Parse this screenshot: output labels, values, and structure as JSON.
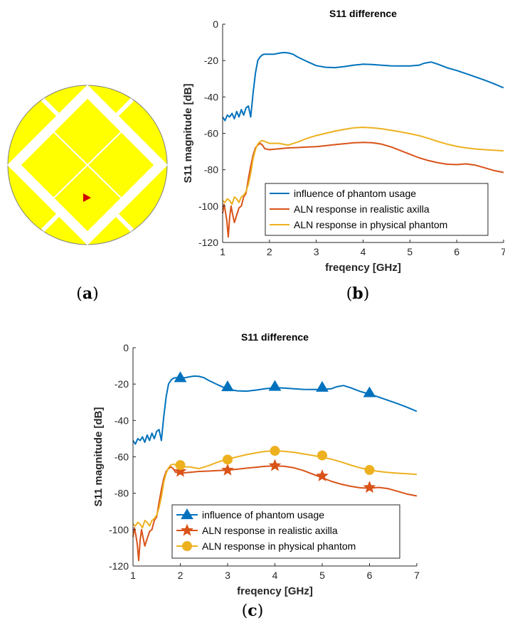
{
  "figure": {
    "panel_a_label": "a",
    "panel_b_label": "b",
    "panel_c_label": "c"
  },
  "colors": {
    "blue": "#0072BD",
    "orange": "#D95319",
    "yellow": "#EDB120",
    "antenna_fill": "#FFFF00",
    "feed": "#D00000"
  },
  "chart_data": [
    {
      "id": "b",
      "type": "line",
      "title": "S11 difference",
      "xlabel": "freqency [GHz]",
      "ylabel": "S11 magnitude [dB]",
      "xlim": [
        1,
        7
      ],
      "ylim": [
        -120,
        0
      ],
      "xticks": [
        "1",
        "2",
        "3",
        "4",
        "5",
        "6",
        "7"
      ],
      "yticks": [
        "0",
        "-20",
        "-40",
        "-60",
        "-80",
        "-100",
        "-120"
      ],
      "grid": false,
      "legend_position": "bottom-right",
      "markers": false,
      "series": [
        {
          "name": "influence of phantom usage",
          "color": "#0072BD",
          "x": [
            1.0,
            1.05,
            1.1,
            1.15,
            1.2,
            1.25,
            1.3,
            1.35,
            1.4,
            1.45,
            1.5,
            1.55,
            1.6,
            1.65,
            1.7,
            1.75,
            1.8,
            1.85,
            1.9,
            2.0,
            2.1,
            2.2,
            2.3,
            2.4,
            2.5,
            2.6,
            2.8,
            3.0,
            3.2,
            3.4,
            3.6,
            3.8,
            4.0,
            4.2,
            4.4,
            4.6,
            4.8,
            5.0,
            5.2,
            5.3,
            5.45,
            5.6,
            5.8,
            6.0,
            6.2,
            6.4,
            6.6,
            6.8,
            7.0
          ],
          "y": [
            -51,
            -53,
            -50,
            -51,
            -49,
            -52,
            -48,
            -51,
            -47,
            -50,
            -46,
            -45,
            -51,
            -38,
            -27,
            -20,
            -18,
            -16.8,
            -16.5,
            -16.5,
            -16.5,
            -16.0,
            -15.6,
            -15.8,
            -16.5,
            -18.0,
            -20.5,
            -22.8,
            -23.7,
            -23.9,
            -23.3,
            -22.5,
            -22.0,
            -22.2,
            -22.6,
            -22.9,
            -23.0,
            -23.0,
            -22.5,
            -21.5,
            -20.8,
            -22.0,
            -24.0,
            -25.5,
            -27.2,
            -29.0,
            -30.8,
            -32.8,
            -35.0
          ]
        },
        {
          "name": "ALN response in realistic axilla",
          "color": "#D95319",
          "x": [
            1.0,
            1.03,
            1.06,
            1.09,
            1.12,
            1.15,
            1.18,
            1.21,
            1.25,
            1.3,
            1.35,
            1.4,
            1.45,
            1.5,
            1.55,
            1.6,
            1.65,
            1.7,
            1.75,
            1.8,
            1.85,
            1.9,
            2.0,
            2.2,
            2.4,
            2.6,
            2.8,
            3.0,
            3.2,
            3.4,
            3.6,
            3.8,
            4.0,
            4.2,
            4.4,
            4.6,
            4.8,
            5.0,
            5.2,
            5.4,
            5.6,
            5.8,
            6.0,
            6.2,
            6.4,
            6.6,
            6.8,
            7.0
          ],
          "y": [
            -104,
            -99,
            -103,
            -108,
            -117,
            -106,
            -100,
            -104,
            -109,
            -105,
            -101,
            -100,
            -95,
            -93,
            -85,
            -78,
            -72,
            -68,
            -66.5,
            -65.5,
            -66.5,
            -68.5,
            -69.0,
            -68.5,
            -68.0,
            -67.8,
            -67.5,
            -67.3,
            -66.8,
            -66.2,
            -65.7,
            -65.2,
            -65.0,
            -65.2,
            -66.0,
            -67.5,
            -69.5,
            -71.5,
            -73.5,
            -75.0,
            -76.2,
            -77.0,
            -77.2,
            -76.8,
            -77.5,
            -79.0,
            -80.5,
            -81.5
          ]
        },
        {
          "name": "ALN response in physical phantom",
          "color": "#EDB120",
          "x": [
            1.0,
            1.05,
            1.1,
            1.15,
            1.2,
            1.25,
            1.3,
            1.35,
            1.4,
            1.45,
            1.5,
            1.55,
            1.6,
            1.65,
            1.7,
            1.75,
            1.8,
            1.85,
            1.9,
            2.0,
            2.2,
            2.4,
            2.6,
            2.8,
            3.0,
            3.2,
            3.4,
            3.6,
            3.8,
            4.0,
            4.2,
            4.4,
            4.6,
            4.8,
            5.0,
            5.2,
            5.4,
            5.6,
            5.8,
            6.0,
            6.2,
            6.4,
            6.6,
            6.8,
            7.0
          ],
          "y": [
            -97,
            -98,
            -96,
            -97,
            -99,
            -95,
            -96,
            -98,
            -95,
            -94,
            -92,
            -88,
            -82,
            -74,
            -69,
            -66,
            -64.5,
            -64,
            -64.5,
            -65.5,
            -65.5,
            -66.5,
            -64.8,
            -62.8,
            -61.2,
            -60.0,
            -58.8,
            -57.8,
            -57.0,
            -56.7,
            -57.0,
            -57.5,
            -58.3,
            -59.2,
            -60.2,
            -61.3,
            -62.8,
            -64.5,
            -66.0,
            -67.2,
            -68.0,
            -68.6,
            -69.0,
            -69.3,
            -69.6
          ]
        }
      ]
    },
    {
      "id": "c",
      "type": "line",
      "title": "S11 difference",
      "xlabel": "freqency [GHz]",
      "ylabel": "S11 magnitude [dB]",
      "xlim": [
        1,
        7
      ],
      "ylim": [
        -120,
        0
      ],
      "xticks": [
        "1",
        "2",
        "3",
        "4",
        "5",
        "6",
        "7"
      ],
      "yticks": [
        "0",
        "-20",
        "-40",
        "-60",
        "-80",
        "-100",
        "-120"
      ],
      "grid": false,
      "legend_position": "bottom-right",
      "markers": true,
      "series": [
        {
          "name": "influence of phantom usage",
          "color": "#0072BD",
          "marker": "triangle",
          "marker_x": [
            2,
            3,
            4,
            5,
            6
          ],
          "marker_y": [
            -16.5,
            -21.5,
            -21.3,
            -21.8,
            -24.8
          ],
          "x": [
            1.0,
            1.05,
            1.1,
            1.15,
            1.2,
            1.25,
            1.3,
            1.35,
            1.4,
            1.45,
            1.5,
            1.55,
            1.6,
            1.65,
            1.7,
            1.75,
            1.8,
            1.85,
            1.9,
            2.0,
            2.1,
            2.2,
            2.3,
            2.4,
            2.5,
            2.6,
            2.8,
            3.0,
            3.2,
            3.4,
            3.6,
            3.8,
            4.0,
            4.2,
            4.4,
            4.6,
            4.8,
            5.0,
            5.2,
            5.3,
            5.45,
            5.6,
            5.8,
            6.0,
            6.2,
            6.4,
            6.6,
            6.8,
            7.0
          ],
          "y": [
            -51,
            -53,
            -50,
            -51,
            -49,
            -52,
            -48,
            -51,
            -47,
            -50,
            -46,
            -45,
            -51,
            -38,
            -27,
            -20,
            -18,
            -16.8,
            -16.5,
            -16.5,
            -16.5,
            -16.0,
            -15.6,
            -15.8,
            -16.5,
            -18.0,
            -20.5,
            -22.8,
            -23.7,
            -23.9,
            -23.3,
            -22.5,
            -22.0,
            -22.2,
            -22.6,
            -22.9,
            -23.0,
            -23.0,
            -22.5,
            -21.5,
            -20.8,
            -22.0,
            -24.0,
            -25.5,
            -27.2,
            -29.0,
            -30.8,
            -32.8,
            -35.0
          ]
        },
        {
          "name": "ALN response in realistic axilla",
          "color": "#D95319",
          "marker": "star",
          "marker_x": [
            2,
            3,
            4,
            5,
            6
          ],
          "marker_y": [
            -68.0,
            -67.3,
            -64.8,
            -70.5,
            -76.8
          ],
          "x": [
            1.0,
            1.03,
            1.06,
            1.09,
            1.12,
            1.15,
            1.18,
            1.21,
            1.25,
            1.3,
            1.35,
            1.4,
            1.45,
            1.5,
            1.55,
            1.6,
            1.65,
            1.7,
            1.75,
            1.8,
            1.85,
            1.9,
            2.0,
            2.2,
            2.4,
            2.6,
            2.8,
            3.0,
            3.2,
            3.4,
            3.6,
            3.8,
            4.0,
            4.2,
            4.4,
            4.6,
            4.8,
            5.0,
            5.2,
            5.4,
            5.6,
            5.8,
            6.0,
            6.2,
            6.4,
            6.6,
            6.8,
            7.0
          ],
          "y": [
            -104,
            -99,
            -103,
            -108,
            -117,
            -106,
            -100,
            -104,
            -109,
            -105,
            -101,
            -100,
            -95,
            -93,
            -85,
            -78,
            -72,
            -68,
            -66.5,
            -65.5,
            -66.5,
            -68.5,
            -69.0,
            -68.5,
            -68.0,
            -67.8,
            -67.5,
            -67.3,
            -66.8,
            -66.2,
            -65.7,
            -65.2,
            -65.0,
            -65.2,
            -66.0,
            -67.5,
            -69.5,
            -71.5,
            -73.5,
            -75.0,
            -76.2,
            -77.0,
            -77.2,
            -76.8,
            -77.5,
            -79.0,
            -80.5,
            -81.5
          ]
        },
        {
          "name": "ALN response in physical phantom",
          "color": "#EDB120",
          "marker": "circle",
          "marker_x": [
            2,
            3,
            4,
            5,
            6
          ],
          "marker_y": [
            -64.5,
            -61.5,
            -56.7,
            -59.2,
            -67.2
          ],
          "x": [
            1.0,
            1.05,
            1.1,
            1.15,
            1.2,
            1.25,
            1.3,
            1.35,
            1.4,
            1.45,
            1.5,
            1.55,
            1.6,
            1.65,
            1.7,
            1.75,
            1.8,
            1.85,
            1.9,
            2.0,
            2.2,
            2.4,
            2.6,
            2.8,
            3.0,
            3.2,
            3.4,
            3.6,
            3.8,
            4.0,
            4.2,
            4.4,
            4.6,
            4.8,
            5.0,
            5.2,
            5.4,
            5.6,
            5.8,
            6.0,
            6.2,
            6.4,
            6.6,
            6.8,
            7.0
          ],
          "y": [
            -97,
            -98,
            -96,
            -97,
            -99,
            -95,
            -96,
            -98,
            -95,
            -94,
            -92,
            -88,
            -82,
            -74,
            -69,
            -66,
            -64.5,
            -64,
            -64.5,
            -65.5,
            -65.5,
            -66.5,
            -64.8,
            -62.8,
            -61.2,
            -60.0,
            -58.8,
            -57.8,
            -57.0,
            -56.7,
            -57.0,
            -57.5,
            -58.3,
            -59.2,
            -60.2,
            -61.3,
            -62.8,
            -64.5,
            -66.0,
            -67.2,
            -68.0,
            -68.6,
            -69.0,
            -69.3,
            -69.6
          ]
        }
      ]
    }
  ]
}
